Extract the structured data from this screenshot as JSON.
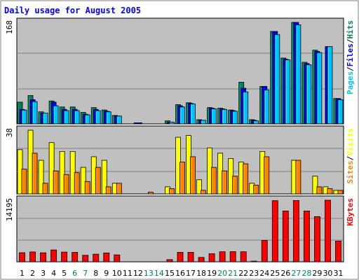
{
  "chart_data": [
    {
      "type": "bar",
      "title": "Daily usage for August 2005",
      "x": [
        "1",
        "2",
        "3",
        "4",
        "5",
        "6",
        "7",
        "8",
        "9",
        "10",
        "11",
        "12",
        "13",
        "14",
        "15",
        "16",
        "17",
        "18",
        "19",
        "20",
        "21",
        "22",
        "23",
        "24",
        "25",
        "26",
        "27",
        "28",
        "29",
        "30",
        "31"
      ],
      "weekend_days": [
        "6",
        "7",
        "13",
        "14",
        "20",
        "21",
        "27",
        "28"
      ],
      "ymax_label": "168",
      "series": [
        {
          "name": "Hits",
          "color": "#00805c",
          "values": [
            36,
            47,
            20,
            38,
            28,
            28,
            19,
            27,
            23,
            14,
            0,
            0,
            0,
            0,
            5,
            32,
            35,
            7,
            27,
            26,
            23,
            69,
            7,
            62,
            153,
            109,
            168,
            102,
            122,
            0,
            42
          ]
        },
        {
          "name": "Files",
          "color": "#0000ff",
          "values": [
            24,
            40,
            18,
            36,
            24,
            24,
            16,
            24,
            21,
            13,
            0,
            0,
            0,
            0,
            3,
            30,
            34,
            6,
            26,
            25,
            22,
            59,
            6,
            62,
            153,
            107,
            168,
            100,
            120,
            128,
            42
          ]
        },
        {
          "name": "Pages",
          "color": "#00c0ff",
          "values": [
            23,
            37,
            18,
            30,
            22,
            22,
            15,
            22,
            20,
            13,
            0,
            0,
            0,
            0,
            3,
            28,
            33,
            6,
            25,
            24,
            21,
            53,
            5,
            56,
            148,
            106,
            164,
            98,
            118,
            128,
            40
          ]
        }
      ],
      "legend": [
        "Pages",
        "/",
        "Files",
        "/",
        "Hits"
      ]
    },
    {
      "type": "bar",
      "x": [
        "1",
        "2",
        "3",
        "4",
        "5",
        "6",
        "7",
        "8",
        "9",
        "10",
        "11",
        "12",
        "13",
        "14",
        "15",
        "16",
        "17",
        "18",
        "19",
        "20",
        "21",
        "22",
        "23",
        "24",
        "25",
        "26",
        "27",
        "28",
        "29",
        "30",
        "31"
      ],
      "ymax_label": "38",
      "series": [
        {
          "name": "Visits",
          "color": "#ffff00",
          "values": [
            25,
            36,
            19,
            29,
            24,
            24,
            15,
            21,
            19,
            6,
            0,
            0,
            0,
            0,
            4,
            32,
            33,
            8,
            26,
            23,
            20,
            18,
            6,
            24,
            0,
            0,
            19,
            0,
            10,
            4,
            2
          ]
        },
        {
          "name": "Sites",
          "color": "#ff8000",
          "values": [
            14,
            23,
            6,
            13,
            11,
            12,
            7,
            15,
            4,
            6,
            0,
            0,
            1,
            0,
            3,
            18,
            21,
            2,
            15,
            13,
            10,
            17,
            5,
            21,
            0,
            0,
            19,
            0,
            4,
            3,
            2
          ]
        }
      ],
      "legend": [
        "Sites",
        "/",
        "Visits"
      ]
    },
    {
      "type": "bar",
      "x": [
        "1",
        "2",
        "3",
        "4",
        "5",
        "6",
        "7",
        "8",
        "9",
        "10",
        "11",
        "12",
        "13",
        "14",
        "15",
        "16",
        "17",
        "18",
        "19",
        "20",
        "21",
        "22",
        "23",
        "24",
        "25",
        "26",
        "27",
        "28",
        "29",
        "30",
        "31"
      ],
      "ymax_label": "14195",
      "series": [
        {
          "name": "KBytes",
          "color": "#ff0000",
          "values": [
            1960,
            2120,
            1935,
            2550,
            2090,
            2030,
            1400,
            1640,
            1910,
            1490,
            0,
            0,
            0,
            0,
            470,
            2040,
            2030,
            940,
            1750,
            2160,
            2180,
            2160,
            140,
            4600,
            13160,
            10940,
            13200,
            10940,
            9720,
            13260,
            4470
          ]
        }
      ],
      "legend": [
        "KBytes"
      ]
    }
  ],
  "colors": {
    "background": "#ffffff",
    "panel": "#c0c0c0",
    "title": "#0000ff",
    "weekday_label": "#000080",
    "weekend_label": "#00805c"
  }
}
